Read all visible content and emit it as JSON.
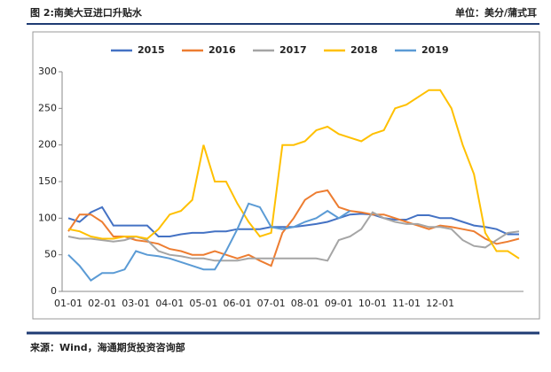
{
  "chart_data": {
    "type": "line",
    "title": "图 2:南美大豆进口升贴水",
    "unit": "单位：美分/蒲式耳",
    "source": "来源：Wind，海通期货投资咨询部",
    "categories": [
      "01-01",
      null,
      null,
      "02-01",
      null,
      null,
      "03-01",
      null,
      null,
      "04-01",
      null,
      null,
      "05-01",
      null,
      null,
      "06-01",
      null,
      null,
      "07-01",
      null,
      null,
      "08-01",
      null,
      null,
      "09-01",
      null,
      null,
      "10-01",
      null,
      null,
      "11-01",
      null,
      null,
      "12-01",
      null,
      null,
      null,
      null,
      null,
      null,
      null
    ],
    "ylim": [
      0,
      300
    ],
    "yticks": [
      0,
      50,
      100,
      150,
      200,
      250,
      300
    ],
    "legend": "top",
    "series": [
      {
        "name": "2015",
        "color": "#4472c4",
        "values": [
          100,
          95,
          108,
          115,
          90,
          90,
          90,
          90,
          75,
          75,
          78,
          80,
          80,
          82,
          82,
          85,
          85,
          85,
          88,
          88,
          88,
          90,
          92,
          95,
          100,
          105,
          106,
          105,
          100,
          98,
          98,
          104,
          104,
          100,
          100,
          95,
          90,
          88,
          85,
          78,
          78
        ]
      },
      {
        "name": "2016",
        "color": "#ed7d31",
        "values": [
          82,
          105,
          105,
          95,
          75,
          75,
          70,
          68,
          65,
          58,
          55,
          50,
          50,
          55,
          50,
          45,
          50,
          42,
          35,
          80,
          100,
          125,
          135,
          138,
          115,
          110,
          108,
          105,
          105,
          100,
          95,
          90,
          85,
          90,
          88,
          85,
          82,
          72,
          65,
          68,
          72
        ]
      },
      {
        "name": "2017",
        "color": "#a5a5a5",
        "values": [
          75,
          72,
          72,
          70,
          68,
          70,
          75,
          70,
          55,
          50,
          48,
          45,
          45,
          42,
          42,
          42,
          45,
          45,
          45,
          45,
          45,
          45,
          45,
          42,
          70,
          75,
          85,
          108,
          100,
          95,
          92,
          92,
          88,
          88,
          85,
          70,
          62,
          60,
          70,
          80,
          82
        ]
      },
      {
        "name": "2018",
        "color": "#ffc000",
        "values": [
          85,
          82,
          75,
          72,
          72,
          75,
          75,
          72,
          85,
          105,
          110,
          125,
          200,
          150,
          150,
          120,
          95,
          75,
          80,
          200,
          200,
          205,
          220,
          225,
          215,
          210,
          205,
          215,
          220,
          250,
          255,
          265,
          275,
          275,
          250,
          200,
          160,
          80,
          55,
          55,
          45
        ]
      },
      {
        "name": "2019",
        "color": "#5b9bd5",
        "values": [
          50,
          35,
          15,
          25,
          25,
          30,
          55,
          50,
          48,
          45,
          40,
          35,
          30,
          30,
          55,
          85,
          120,
          115,
          88,
          85,
          88,
          95,
          100,
          110,
          100,
          110,
          null,
          null,
          null,
          null,
          null,
          null,
          null,
          null,
          null,
          null,
          null,
          null,
          null,
          null,
          null
        ]
      }
    ]
  }
}
